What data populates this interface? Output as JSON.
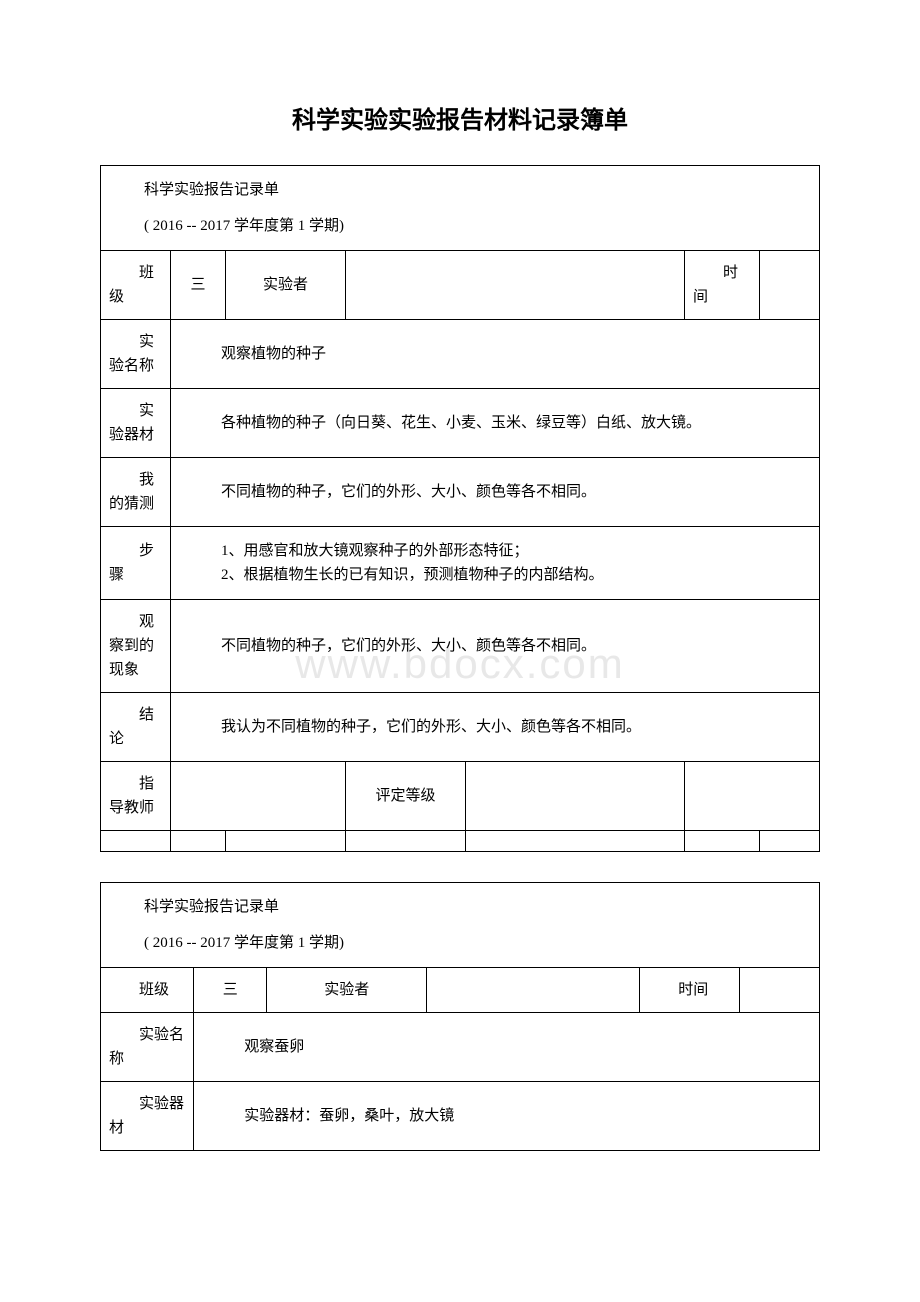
{
  "page_title": "科学实验实验报告材料记录簿单",
  "watermark": "www.bdocx.com",
  "colors": {
    "text": "#000000",
    "background": "#ffffff",
    "border": "#000000",
    "watermark": "#e8e8e8"
  },
  "typography": {
    "body_font": "SimSun",
    "title_fontsize": 24,
    "body_fontsize": 15
  },
  "report1": {
    "header_title": "科学实验报告记录单",
    "header_subtitle": "( 2016 -- 2017 学年度第 1 学期)",
    "labels": {
      "class": "班级",
      "experimenter": "实验者",
      "time": "时间",
      "exp_name": "实验名称",
      "exp_equipment": "实验器材",
      "guess": "我的猜测",
      "steps": "步骤",
      "observation": "观察到的现象",
      "conclusion": "结论",
      "teacher": "指导教师",
      "grade": "评定等级"
    },
    "values": {
      "class": "三",
      "experimenter": "",
      "time": "",
      "exp_name": "观察植物的种子",
      "exp_equipment": "各种植物的种子（向日葵、花生、小麦、玉米、绿豆等）白纸、放大镜。",
      "guess": "不同植物的种子，它们的外形、大小、颜色等各不相同。",
      "step1": "1、用感官和放大镜观察种子的外部形态特征；",
      "step2": "2、根据植物生长的已有知识，预测植物种子的内部结构。",
      "observation": "不同植物的种子，它们的外形、大小、颜色等各不相同。",
      "conclusion": "我认为不同植物的种子，它们的外形、大小、颜色等各不相同。",
      "teacher": "",
      "grade": ""
    }
  },
  "report2": {
    "header_title": "科学实验报告记录单",
    "header_subtitle": "( 2016 -- 2017 学年度第 1 学期)",
    "labels": {
      "class": "班级",
      "experimenter": "实验者",
      "time": "时间",
      "exp_name": "实验名称",
      "exp_equipment": "实验器材"
    },
    "values": {
      "class": "三",
      "experimenter": "",
      "time": "",
      "exp_name": "观察蚕卵",
      "exp_equipment": "实验器材：蚕卵，桑叶，放大镜"
    }
  }
}
